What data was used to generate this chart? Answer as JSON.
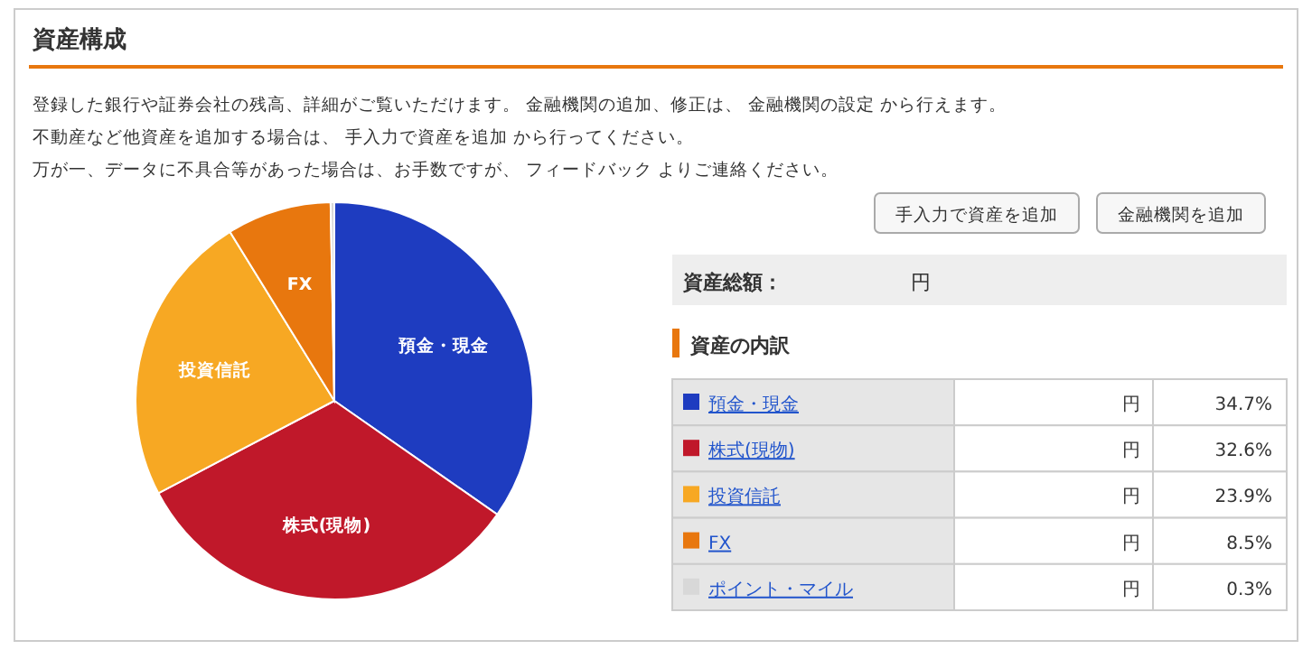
{
  "chart_data": {
    "type": "pie",
    "title": "資産構成",
    "categories": [
      "預金・現金",
      "株式(現物)",
      "投資信託",
      "FX",
      "ポイント・マイル"
    ],
    "values": [
      34.7,
      32.6,
      23.9,
      8.5,
      0.3
    ],
    "colors": [
      "#1e3cc0",
      "#c0182a",
      "#f7a823",
      "#e8770e",
      "#d8d8d8"
    ],
    "legend": "right",
    "value_labels": [
      "34.7%",
      "32.6%",
      "23.9%",
      "8.5%",
      "0.3%"
    ],
    "annotations": [
      "登録した銀行や証券会社の残高、詳細がご覧いただけます。 金融機関の追加、修正は、 金融機関の設定 から行えます。",
      "不動産など他資産を追加する場合は、 手入力で資産を追加 から行ってください。",
      "万が一、データに不具合等があった場合は、お手数ですが、 フィードバック よりご連絡ください。",
      "手入力で資産を追加",
      "金融機関を追加",
      "資産総額：",
      "円",
      "資産の内訳"
    ]
  }
}
